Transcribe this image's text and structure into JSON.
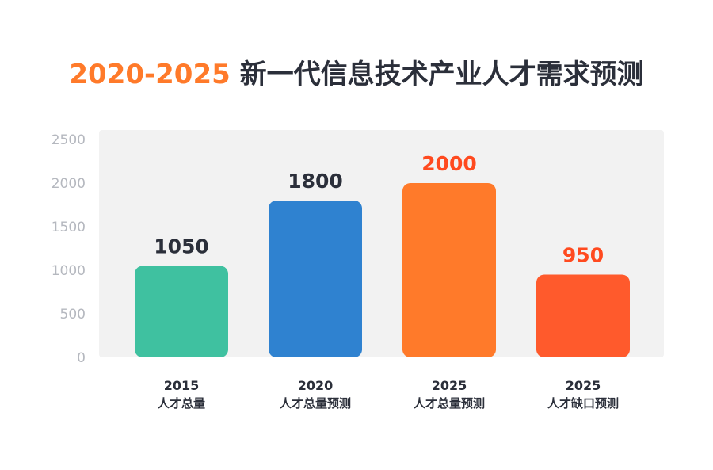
{
  "title": {
    "year_range": "2020-2025",
    "text": "新一代信息技术产业人才需求预测"
  },
  "chart_data": {
    "type": "bar",
    "title": "2020-2025 新一代信息技术产业人才需求预测",
    "categories": [
      "2015 人才总量",
      "2020 人才总量预测",
      "2025 人才总量预测",
      "2025 人才缺口预测"
    ],
    "category_lines": [
      [
        "2015",
        "人才总量"
      ],
      [
        "2020",
        "人才总量预测"
      ],
      [
        "2025",
        "人才总量预测"
      ],
      [
        "2025",
        "人才缺口预测"
      ]
    ],
    "values": [
      1050,
      1800,
      2000,
      950
    ],
    "bar_colors": [
      "#3fc1a0",
      "#2f82d0",
      "#ff7a2a",
      "#ff5a2c"
    ],
    "label_colors": [
      "#2b2f3a",
      "#2b2f3a",
      "#ff4a1f",
      "#ff4a1f"
    ],
    "yticks": [
      0,
      500,
      1000,
      1500,
      2000,
      2500
    ],
    "ylim": [
      0,
      2500
    ],
    "xlabel": "",
    "ylabel": "",
    "grid": false,
    "plot_background": "#f2f2f2"
  }
}
